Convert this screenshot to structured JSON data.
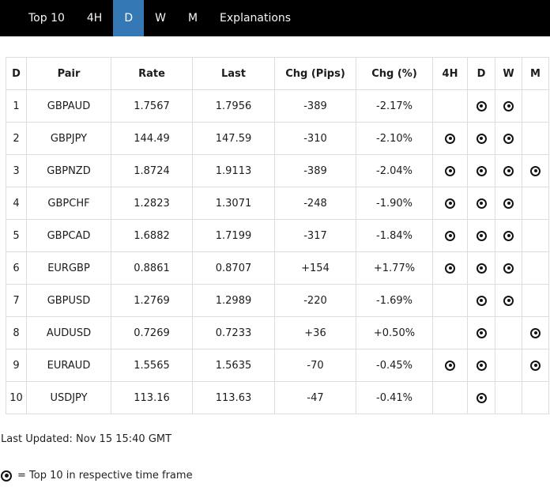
{
  "nav": {
    "items": [
      {
        "label": "Top 10",
        "active": false
      },
      {
        "label": "4H",
        "active": false
      },
      {
        "label": "D",
        "active": true
      },
      {
        "label": "W",
        "active": false
      },
      {
        "label": "M",
        "active": false
      },
      {
        "label": "Explanations",
        "active": false
      }
    ]
  },
  "table": {
    "headers": [
      "D",
      "Pair",
      "Rate",
      "Last",
      "Chg (Pips)",
      "Chg (%)",
      "4H",
      "D",
      "W",
      "M"
    ],
    "rows": [
      {
        "rank": "1",
        "pair": "GBPAUD",
        "rate": "1.7567",
        "last": "1.7956",
        "chg_pips": "-389",
        "chg_pct": "-2.17%",
        "tf_4h": false,
        "tf_d": true,
        "tf_w": true,
        "tf_m": false
      },
      {
        "rank": "2",
        "pair": "GBPJPY",
        "rate": "144.49",
        "last": "147.59",
        "chg_pips": "-310",
        "chg_pct": "-2.10%",
        "tf_4h": true,
        "tf_d": true,
        "tf_w": true,
        "tf_m": false
      },
      {
        "rank": "3",
        "pair": "GBPNZD",
        "rate": "1.8724",
        "last": "1.9113",
        "chg_pips": "-389",
        "chg_pct": "-2.04%",
        "tf_4h": true,
        "tf_d": true,
        "tf_w": true,
        "tf_m": true
      },
      {
        "rank": "4",
        "pair": "GBPCHF",
        "rate": "1.2823",
        "last": "1.3071",
        "chg_pips": "-248",
        "chg_pct": "-1.90%",
        "tf_4h": true,
        "tf_d": true,
        "tf_w": true,
        "tf_m": false
      },
      {
        "rank": "5",
        "pair": "GBPCAD",
        "rate": "1.6882",
        "last": "1.7199",
        "chg_pips": "-317",
        "chg_pct": "-1.84%",
        "tf_4h": true,
        "tf_d": true,
        "tf_w": true,
        "tf_m": false
      },
      {
        "rank": "6",
        "pair": "EURGBP",
        "rate": "0.8861",
        "last": "0.8707",
        "chg_pips": "+154",
        "chg_pct": "+1.77%",
        "tf_4h": true,
        "tf_d": true,
        "tf_w": true,
        "tf_m": false
      },
      {
        "rank": "7",
        "pair": "GBPUSD",
        "rate": "1.2769",
        "last": "1.2989",
        "chg_pips": "-220",
        "chg_pct": "-1.69%",
        "tf_4h": false,
        "tf_d": true,
        "tf_w": true,
        "tf_m": false
      },
      {
        "rank": "8",
        "pair": "AUDUSD",
        "rate": "0.7269",
        "last": "0.7233",
        "chg_pips": "+36",
        "chg_pct": "+0.50%",
        "tf_4h": false,
        "tf_d": true,
        "tf_w": false,
        "tf_m": true
      },
      {
        "rank": "9",
        "pair": "EURAUD",
        "rate": "1.5565",
        "last": "1.5635",
        "chg_pips": "-70",
        "chg_pct": "-0.45%",
        "tf_4h": true,
        "tf_d": true,
        "tf_w": false,
        "tf_m": true
      },
      {
        "rank": "10",
        "pair": "USDJPY",
        "rate": "113.16",
        "last": "113.63",
        "chg_pips": "-47",
        "chg_pct": "-0.41%",
        "tf_4h": false,
        "tf_d": true,
        "tf_w": false,
        "tf_m": false
      }
    ]
  },
  "footer": {
    "last_updated": "Last Updated: Nov 15 15:40 GMT",
    "legend_text": "= Top 10 in respective time frame",
    "legend_icon": "bullseye-icon"
  },
  "colors": {
    "nav_bg": "#000000",
    "accent": "#3578b6",
    "border": "#dddddd",
    "text": "#1c1c1c"
  }
}
